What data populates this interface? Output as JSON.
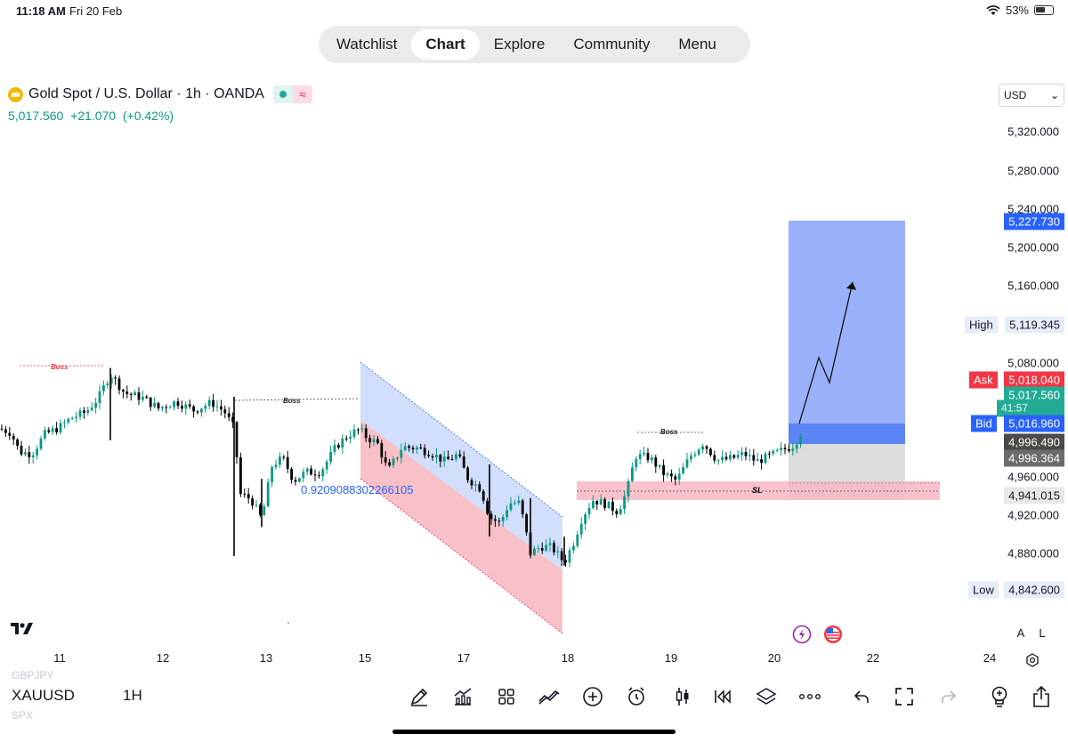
{
  "status_bar": {
    "time": "11:18 AM",
    "date": "Fri 20 Feb",
    "battery": "53%"
  },
  "nav": {
    "tabs": [
      "Watchlist",
      "Chart",
      "Explore",
      "Community",
      "Menu"
    ],
    "active": "Chart"
  },
  "symbol": {
    "name": "Gold Spot / U.S. Dollar · 1h · OANDA",
    "icon": "gold-coin-icon",
    "price": "5,017.560",
    "change": "+21.070",
    "change_pct": "(+0.42%)"
  },
  "currency": {
    "value": "USD"
  },
  "price_axis": {
    "ticks": [
      "5,320.000",
      "5,280.000",
      "5,240.000",
      "5,200.000",
      "5,160.000",
      "5,080.000",
      "4,960.000",
      "4,920.000",
      "4,880.000"
    ],
    "target": "5,227.730",
    "high_label": "High",
    "high": "5,119.345",
    "ask_label": "Ask",
    "ask": "5,018.040",
    "last": "5,017.560",
    "countdown": "41:57",
    "bid_label": "Bid",
    "bid": "5,016.960",
    "level_a": "4,996.490",
    "level_b": "4,996.364",
    "stop": "4,941.015",
    "low_label": "Low",
    "low": "4,842.600"
  },
  "time_axis": [
    "11",
    "12",
    "13",
    "15",
    "17",
    "18",
    "19",
    "20",
    "22",
    "24"
  ],
  "annotations": {
    "boss_1": "Boss",
    "boss_2": "Boss",
    "boss_3": "Boss",
    "sl": "SL",
    "fib_value": "0.9209088302266105"
  },
  "chart_controls": {
    "auto": "A",
    "log": "L"
  },
  "bottom": {
    "ghost_above": "GBPJPY",
    "symbol": "XAUUSD",
    "ghost_below": "SPX",
    "timeframe": "1H",
    "tools": [
      "pen-icon",
      "indicators-icon",
      "grid-icon",
      "strategy-icon",
      "add-icon",
      "alert-icon",
      "candles-icon",
      "replay-icon",
      "layers-icon",
      "more-icon",
      "undo-icon",
      "fullscreen-icon",
      "redo-icon",
      "idea-icon",
      "share-icon"
    ]
  },
  "colors": {
    "up": "#089981",
    "down": "#000000",
    "target_zone": "#93adfb",
    "entry_zone": "#5b84f4",
    "stop_zone": "#d9d9d9",
    "sl_band": "#f7b7c4",
    "channel_upper": "#c9d8fb",
    "channel_lower": "#f7b6bd",
    "ask_tag": "#f23645",
    "bid_tag": "#2962ff",
    "last_tag": "#22ab94"
  },
  "chart_data": {
    "type": "candlestick",
    "symbol": "XAUUSD",
    "timeframe": "1h",
    "y_axis": {
      "min": 4840,
      "max": 5330,
      "ticks": [
        5320,
        5280,
        5240,
        5200,
        5160,
        5080,
        4960,
        4920,
        4880
      ]
    },
    "x_axis": {
      "labels": [
        "11",
        "12",
        "13",
        "15",
        "17",
        "18",
        "19",
        "20",
        "22",
        "24"
      ]
    },
    "path_keys": [
      [
        0,
        5012
      ],
      [
        12,
        5008
      ],
      [
        22,
        4988
      ],
      [
        36,
        4986
      ],
      [
        50,
        5006
      ],
      [
        66,
        5013
      ],
      [
        80,
        5023
      ],
      [
        96,
        5029
      ],
      [
        110,
        5043
      ],
      [
        124,
        5069
      ],
      [
        140,
        5049
      ],
      [
        160,
        5044
      ],
      [
        178,
        5033
      ],
      [
        198,
        5040
      ],
      [
        218,
        5031
      ],
      [
        238,
        5039
      ],
      [
        252,
        5030
      ],
      [
        263,
        5012
      ],
      [
        270,
        4944
      ],
      [
        282,
        4939
      ],
      [
        294,
        4918
      ],
      [
        306,
        4975
      ],
      [
        318,
        4981
      ],
      [
        330,
        4958
      ],
      [
        344,
        4967
      ],
      [
        360,
        4967
      ],
      [
        378,
        4994
      ],
      [
        392,
        5006
      ],
      [
        404,
        5011
      ],
      [
        412,
        5003
      ],
      [
        424,
        4997
      ],
      [
        436,
        4968
      ],
      [
        452,
        4993
      ],
      [
        468,
        4992
      ],
      [
        484,
        4987
      ],
      [
        500,
        4978
      ],
      [
        514,
        4985
      ],
      [
        526,
        4960
      ],
      [
        540,
        4950
      ],
      [
        550,
        4920
      ],
      [
        562,
        4914
      ],
      [
        572,
        4935
      ],
      [
        584,
        4935
      ],
      [
        596,
        4883
      ],
      [
        608,
        4890
      ],
      [
        620,
        4889
      ],
      [
        634,
        4873
      ],
      [
        644,
        4893
      ],
      [
        654,
        4920
      ],
      [
        666,
        4938
      ],
      [
        680,
        4934
      ],
      [
        694,
        4926
      ],
      [
        704,
        4946
      ],
      [
        714,
        4984
      ],
      [
        730,
        4982
      ],
      [
        746,
        4965
      ],
      [
        760,
        4958
      ],
      [
        776,
        4984
      ],
      [
        790,
        4997
      ],
      [
        806,
        4979
      ],
      [
        822,
        4981
      ],
      [
        836,
        4986
      ],
      [
        850,
        4978
      ],
      [
        866,
        4984
      ],
      [
        880,
        4990
      ],
      [
        892,
        4995
      ],
      [
        900,
        5008
      ]
    ],
    "drawings": {
      "long_position": {
        "entry": 4996.5,
        "target": 5227.73,
        "stop": 4941.015
      },
      "high": 5119.345,
      "low": 4842.6,
      "bid": 5016.96,
      "ask": 5018.04,
      "last": 5017.56
    }
  }
}
